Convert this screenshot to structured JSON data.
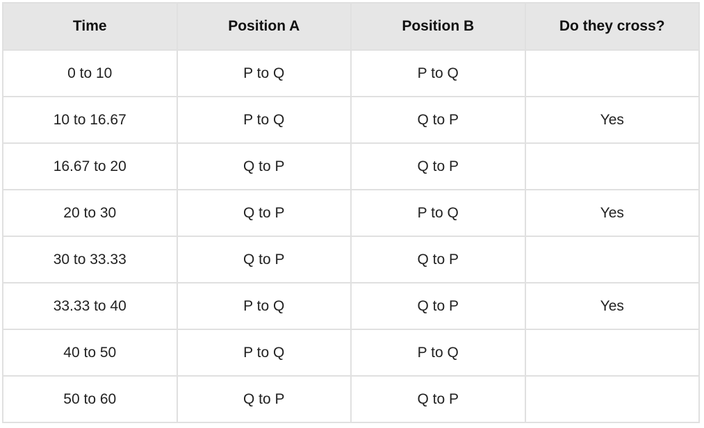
{
  "table": {
    "headers": [
      "Time",
      "Position A",
      "Position B",
      "Do they cross?"
    ],
    "rows": [
      [
        "0 to 10",
        "P to Q",
        "P to Q",
        ""
      ],
      [
        "10 to 16.67",
        "P to Q",
        "Q to P",
        "Yes"
      ],
      [
        "16.67 to 20",
        "Q to P",
        "Q to P",
        ""
      ],
      [
        "20 to 30",
        "Q to P",
        "P to Q",
        "Yes"
      ],
      [
        "30 to 33.33",
        "Q to P",
        "Q to P",
        ""
      ],
      [
        "33.33 to 40",
        "P to Q",
        "Q to P",
        "Yes"
      ],
      [
        "40 to 50",
        "P to Q",
        "P to Q",
        ""
      ],
      [
        "50 to 60",
        "Q to P",
        "Q to P",
        ""
      ]
    ]
  }
}
